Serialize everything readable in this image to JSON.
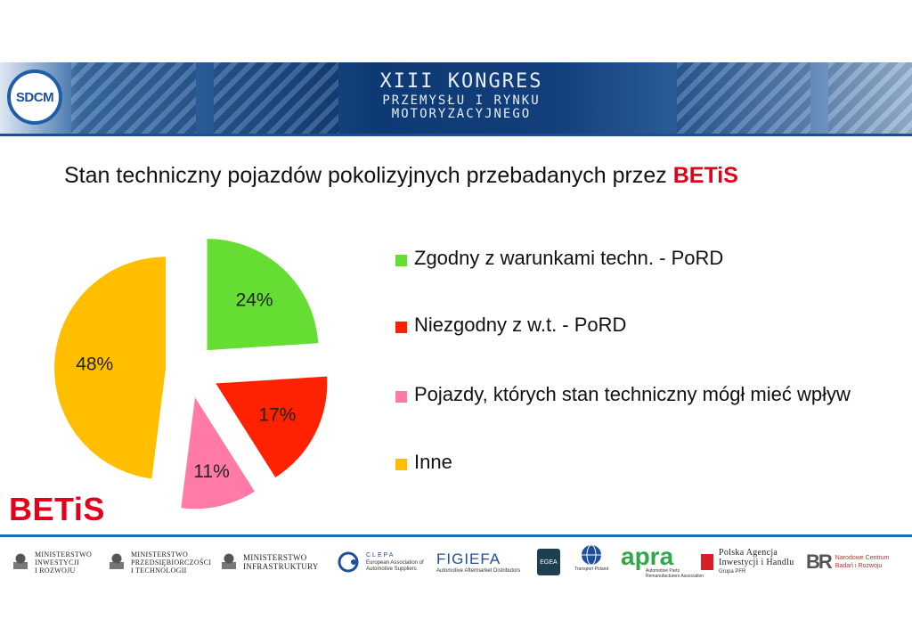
{
  "banner": {
    "logo_text": "SDCM",
    "title_line1": "XIII KONGRES",
    "title_line2": "PRZEMYSŁU I RYNKU",
    "title_line3": "MOTORYZACYJNEGO"
  },
  "heading": {
    "text": "Stan techniczny pojazdów pokolizyjnych przebadanych przez ",
    "brand": "BETiS"
  },
  "chart_data": {
    "type": "pie",
    "exploded": true,
    "slices": [
      {
        "label": "Zgodny z warunkami techn. - PoRD",
        "value": 24,
        "display": "24%",
        "color": "#66dd33"
      },
      {
        "label": "Niezgodny z w.t. - PoRD",
        "value": 17,
        "display": "17%",
        "color": "#ff2200"
      },
      {
        "label": "Pojazdy, których stan techniczny mógł mieć wpływ",
        "value": 11,
        "display": "11%",
        "color": "#ff7aa6"
      },
      {
        "label": "Inne",
        "value": 48,
        "display": "48%",
        "color": "#ffbf00"
      }
    ],
    "legend_position": "right"
  },
  "brand_logo": "BETiS",
  "sponsors": [
    {
      "name": "MINISTERSTWO\nINWESTYCJI\nI ROZWOJU"
    },
    {
      "name": "MINISTERSTWO\nPRZEDSIĘBIORCZOŚCI\nI TECHNOLOGII"
    },
    {
      "name": "MINISTERSTWO\nINFRASTRUKTURY"
    },
    {
      "name": "CLEPA",
      "sub": "European Association of\nAutomotive Suppliers"
    },
    {
      "name": "FIGIEFA",
      "sub": "Automotive Aftermarket Distributors"
    },
    {
      "name": "EGEA"
    },
    {
      "name": "Transport Poland"
    },
    {
      "name": "apra",
      "sub": "Automotive Parts\nRemanufacturers Association"
    },
    {
      "name": "Polska Agencja\nInwestycji i Handlu",
      "sub": "Grupa PFR"
    },
    {
      "name": "Narodowe Centrum\nBadań i Rozwoju"
    }
  ]
}
